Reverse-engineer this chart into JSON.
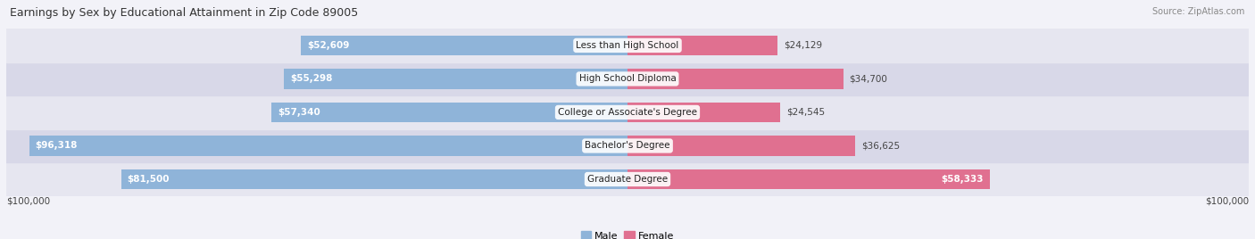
{
  "title": "Earnings by Sex by Educational Attainment in Zip Code 89005",
  "source": "Source: ZipAtlas.com",
  "categories": [
    "Graduate Degree",
    "Bachelor's Degree",
    "College or Associate's Degree",
    "High School Diploma",
    "Less than High School"
  ],
  "male_values": [
    81500,
    96318,
    57340,
    55298,
    52609
  ],
  "female_values": [
    58333,
    36625,
    24545,
    34700,
    24129
  ],
  "max_value": 100000,
  "male_color": "#8fb4d9",
  "female_color": "#e07090",
  "bg_color": "#f2f2f8",
  "row_colors": [
    "#e6e6f0",
    "#d8d8e8"
  ],
  "bar_height": 0.6,
  "xlabel_left": "$100,000",
  "xlabel_right": "$100,000",
  "label_inside_threshold": 0.45
}
